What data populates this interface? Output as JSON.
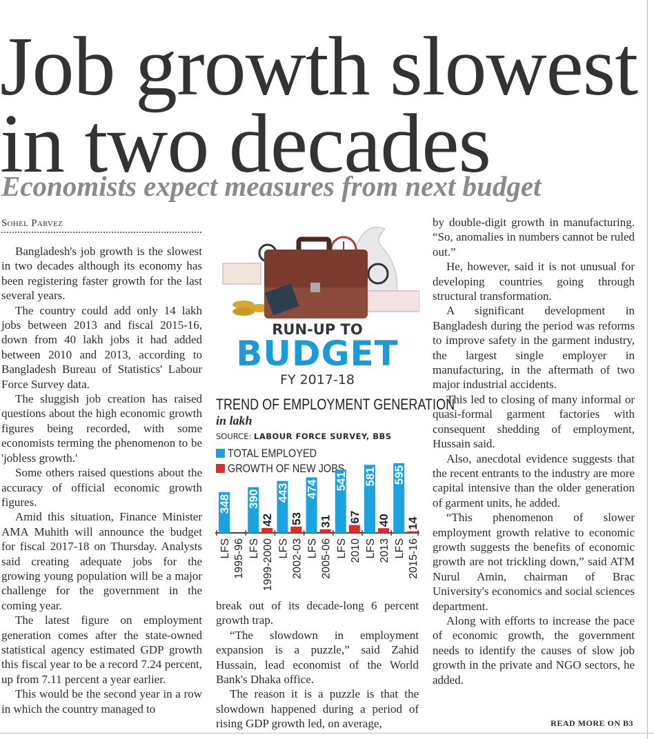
{
  "headline": {
    "line1": "Job growth slowest",
    "line2": "in two decades"
  },
  "subhead": "Economists expect measures from next budget",
  "byline": "Sohel Parvez",
  "columns": {
    "left": [
      "Bangladesh's job growth is the slowest in two decades although its economy has been registering faster growth for the last several years.",
      "The country could add only 14 lakh jobs between 2013 and fiscal 2015-16, down from 40 lakh jobs it had added between 2010 and 2013, according to Bangladesh Bureau of Statistics' Labour Force Survey data.",
      "The sluggish job creation has raised questions about the high economic growth figures being recorded, with some economists terming the phenomenon to be 'jobless growth.'",
      "Some others raised questions about the accuracy of official economic growth figures.",
      "Amid this situation, Finance Minister AMA Muhith will announce the budget for fiscal 2017-18 on Thursday. Analysts said creating adequate jobs for the growing young population will be a major challenge for the government in the coming year.",
      "The latest figure on employment generation comes after the state-owned statistical agency estimated GDP growth this fiscal year to be a record 7.24 percent, up from 7.11 percent a year earlier.",
      "This would be the second year in a row in which the country managed to"
    ],
    "middle": [
      "break out of its decade-long 6 percent growth trap.",
      "“The slowdown in employment expansion is a puzzle,” said Zahid Hussain, lead economist of the World Bank's Dhaka office.",
      "The reason it is a puzzle is that the slowdown happened during a period of rising GDP growth led, on average,"
    ],
    "right": [
      "by double-digit growth in manufacturing. “So, anomalies in numbers cannot be ruled out.”",
      "He, however, said it is not unusual for developing countries going through structural transformation.",
      "A significant development in Bangladesh during the period was reforms to improve safety in the garment industry, the largest single employer in manufacturing, in the aftermath of two major industrial accidents.",
      "This led to closing of many informal or quasi-formal garment factories with consequent shedding of employment, Hussain said.",
      "Also, anecdotal evidence suggests that the recent entrants to the industry are more capital intensive than the older generation of garment units, he added.",
      "“This phenomenon of slower employment growth relative to economic growth suggests the benefits of economic growth are not trickling down,” said ATM Nurul Amin, chairman of Brac University's economics and social sciences department.",
      "Along with efforts to increase the pace of economic growth, the government needs to identify the causes of slow job growth in the private and NGO sectors, he added."
    ]
  },
  "read_more": "READ MORE ON B3",
  "budget_logo": {
    "runup": "RUN-UP TO",
    "budget": "BUDGET",
    "fy": "FY 2017-18",
    "color": "#1a9ad6"
  },
  "chart_data": {
    "type": "bar",
    "title": "TREND OF EMPLOYMENT GENERATION",
    "unit": "in lakh",
    "source_label": "SOURCE:",
    "source": "LABOUR FORCE SURVEY, BBS",
    "categories": [
      [
        "LFS",
        "1995-96"
      ],
      [
        "LFS",
        "1999-2000"
      ],
      [
        "LFS",
        "2002-03"
      ],
      [
        "LFS",
        "2005-06"
      ],
      [
        "LFS",
        "2010"
      ],
      [
        "LFS",
        "2013"
      ],
      [
        "LFS",
        "2015-16"
      ]
    ],
    "series": [
      {
        "name": "TOTAL EMPLOYED",
        "color": "#1aa3e0",
        "values": [
          348,
          390,
          443,
          474,
          541,
          581,
          595
        ]
      },
      {
        "name": "GROWTH OF NEW JOBS",
        "color": "#e02a2a",
        "values": [
          null,
          42,
          53,
          31,
          67,
          40,
          14
        ]
      }
    ],
    "legend": "top-left",
    "data_labels": true,
    "grid": false
  }
}
